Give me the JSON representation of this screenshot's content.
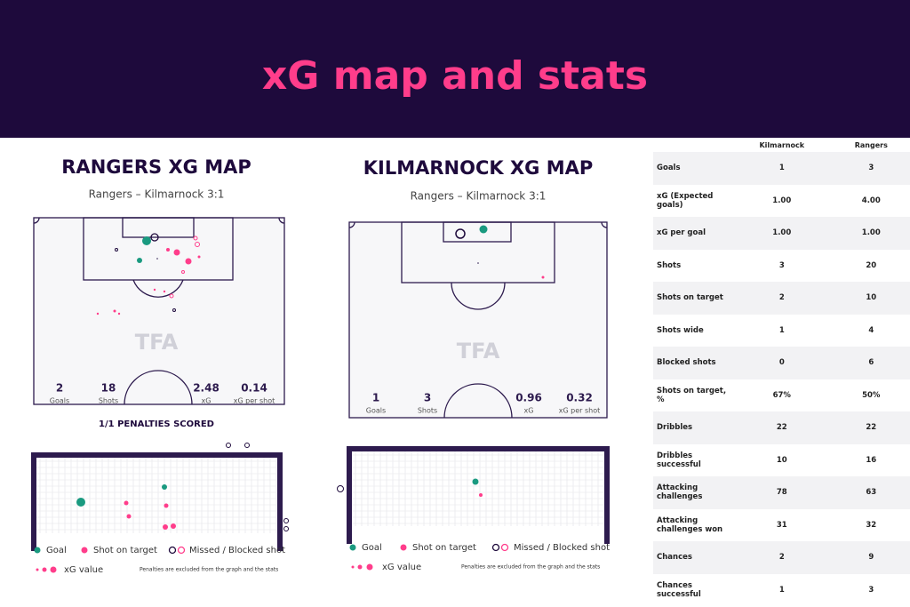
{
  "header": {
    "title": "xG map and stats"
  },
  "maps": [
    {
      "title": "RANGERS XG MAP",
      "subtitle": "Rangers – Kilmarnock 3:1",
      "watermark": "TFA",
      "stats": [
        {
          "value": "2",
          "label": "Goals"
        },
        {
          "value": "18",
          "label": "Shots"
        },
        {
          "value": "2.48",
          "label": "xG"
        },
        {
          "value": "0.14",
          "label": "xG per shot"
        }
      ],
      "note": "1/1 PENALTIES SCORED"
    },
    {
      "title": "KILMARNOCK XG MAP",
      "subtitle": "Rangers – Kilmarnock 3:1",
      "watermark": "TFA",
      "stats": [
        {
          "value": "1",
          "label": "Goals"
        },
        {
          "value": "3",
          "label": "Shots"
        },
        {
          "value": "0.96",
          "label": "xG"
        },
        {
          "value": "0.32",
          "label": "xG per shot"
        }
      ]
    }
  ],
  "legend": {
    "goal": "Goal",
    "on_target": "Shot on target",
    "missed": "Missed / Blocked shot",
    "xg": "xG value",
    "footnote": "Penalties are excluded from the graph and the stats"
  },
  "table": {
    "columns": [
      "Kilmarnock",
      "Rangers"
    ],
    "rows": [
      [
        "Goals",
        "1",
        "3"
      ],
      [
        "xG (Expected goals)",
        "1.00",
        "4.00"
      ],
      [
        "xG per goal",
        "1.00",
        "1.00"
      ],
      [
        "Shots",
        "3",
        "20"
      ],
      [
        "Shots on target",
        "2",
        "10"
      ],
      [
        "Shots wide",
        "1",
        "4"
      ],
      [
        "Blocked shots",
        "0",
        "6"
      ],
      [
        "Shots on target, %",
        "67%",
        "50%"
      ],
      [
        "Dribbles",
        "22",
        "22"
      ],
      [
        "Dribbles successful",
        "10",
        "16"
      ],
      [
        "Attacking challenges",
        "78",
        "63"
      ],
      [
        "Attacking challenges won",
        "31",
        "32"
      ],
      [
        "Chances",
        "2",
        "9"
      ],
      [
        "Chances successful",
        "1",
        "3"
      ]
    ]
  }
}
